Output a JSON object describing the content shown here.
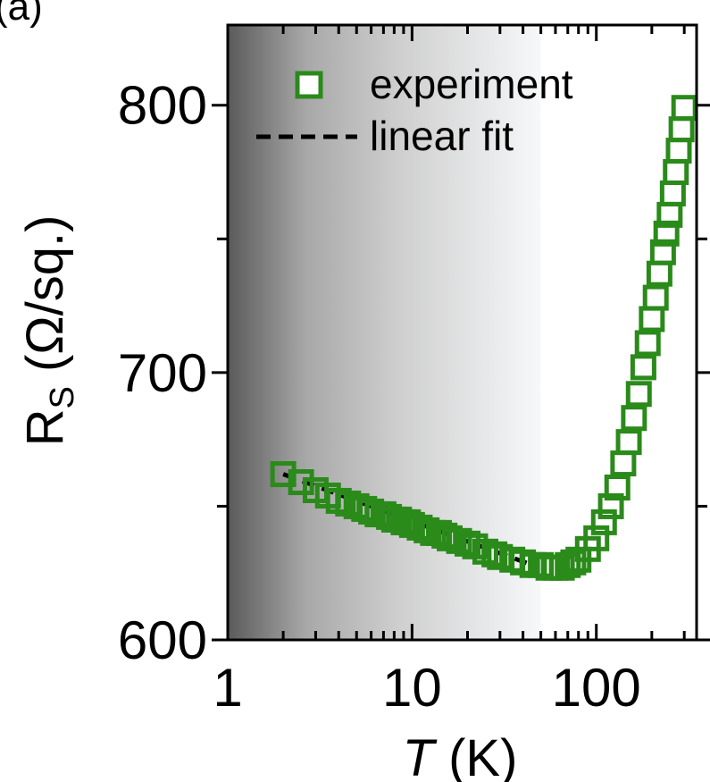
{
  "chart_data": {
    "type": "scatter",
    "panel_label": "(a)",
    "xscale": "log",
    "xlim": [
      1,
      350
    ],
    "ylim": [
      600,
      830
    ],
    "x_ticks": [
      1,
      10,
      100
    ],
    "x_tick_labels": [
      "1",
      "10",
      "100"
    ],
    "y_ticks": [
      600,
      700,
      800
    ],
    "y_tick_labels": [
      "600",
      "700",
      "800"
    ],
    "xlabel_italic": "T",
    "xlabel_unit": " (K)",
    "ylabel_main": "R",
    "ylabel_sub": "S",
    "ylabel_unit": " (Ω/sq.)",
    "legend": {
      "position": "top-left",
      "entries": [
        "experiment",
        "linear fit"
      ]
    },
    "shaded_region": {
      "x_from": 1,
      "x_to": 50,
      "style": "dark-to-light gradient"
    },
    "colors": {
      "experiment": "#2a8a1a",
      "fit": "#000000"
    },
    "series": [
      {
        "name": "experiment",
        "marker": "open-square",
        "x": [
          2,
          2.5,
          3,
          3.5,
          4,
          4.5,
          5,
          5.5,
          6,
          6.5,
          7,
          7.5,
          8,
          8.5,
          9,
          9.5,
          10,
          11,
          12,
          13,
          14,
          15,
          16,
          18,
          20,
          22,
          25,
          28,
          30,
          35,
          40,
          45,
          50,
          55,
          60,
          65,
          70,
          75,
          80,
          90,
          100,
          110,
          120,
          130,
          140,
          150,
          160,
          170,
          180,
          190,
          200,
          210,
          220,
          230,
          240,
          250,
          260,
          270,
          280,
          290,
          300
        ],
        "y": [
          662,
          659,
          656,
          654,
          652,
          651,
          650,
          649,
          648,
          647,
          647,
          646,
          645,
          645,
          644,
          644,
          643,
          642,
          641,
          640,
          640,
          639,
          638,
          637,
          636,
          635,
          633,
          632,
          631,
          630,
          629,
          628,
          628,
          627,
          627,
          627,
          628,
          629,
          630,
          634,
          638,
          644,
          650,
          657,
          666,
          674,
          683,
          692,
          702,
          711,
          720,
          728,
          737,
          745,
          752,
          759,
          767,
          775,
          783,
          791,
          799
        ]
      },
      {
        "name": "linear fit",
        "line": "dashed",
        "x": [
          2,
          45
        ],
        "y": [
          662,
          628
        ]
      }
    ]
  }
}
